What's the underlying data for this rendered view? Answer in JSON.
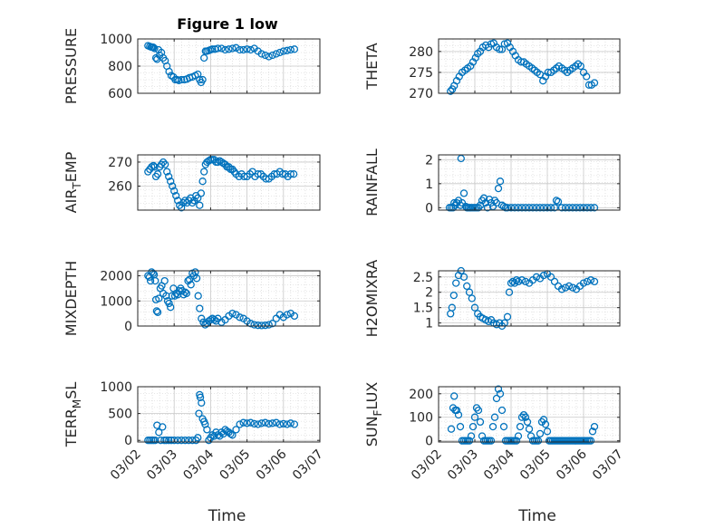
{
  "figure_title": "Figure 1 low",
  "chart_data": [
    {
      "type": "scatter",
      "ylabel": "PRESSURE",
      "ylim": [
        600,
        1000
      ],
      "yticks": [
        600,
        800,
        1000
      ],
      "xlim": [
        0,
        5
      ],
      "x": [
        0.28,
        0.33,
        0.37,
        0.4,
        0.43,
        0.46,
        0.5,
        0.53,
        0.57,
        0.6,
        0.65,
        0.7,
        0.75,
        0.8,
        0.86,
        0.92,
        0.98,
        1.03,
        1.08,
        1.13,
        1.2,
        1.28,
        1.35,
        1.42,
        1.5,
        1.58,
        1.65,
        1.7,
        1.74,
        1.78,
        1.82,
        1.86,
        1.9,
        1.95,
        2.0,
        2.05,
        2.12,
        2.2,
        2.3,
        2.4,
        2.5,
        2.6,
        2.7,
        2.8,
        2.9,
        3.0,
        3.1,
        3.2,
        3.3,
        3.4,
        3.5,
        3.6,
        3.7,
        3.8,
        3.9,
        4.0,
        4.1,
        4.2,
        4.3
      ],
      "y": [
        950,
        945,
        940,
        940,
        938,
        930,
        860,
        850,
        920,
        880,
        900,
        860,
        840,
        800,
        760,
        730,
        720,
        700,
        700,
        695,
        700,
        700,
        705,
        715,
        720,
        730,
        740,
        700,
        680,
        700,
        860,
        910,
        910,
        915,
        920,
        925,
        925,
        930,
        930,
        920,
        925,
        930,
        935,
        920,
        920,
        925,
        920,
        930,
        910,
        890,
        880,
        870,
        880,
        890,
        900,
        910,
        915,
        920,
        925
      ]
    },
    {
      "type": "scatter",
      "ylabel": "THETA",
      "ylim": [
        270,
        283
      ],
      "yticks": [
        270,
        275,
        280
      ],
      "xlim": [
        0,
        5
      ],
      "x": [
        0.33,
        0.38,
        0.43,
        0.5,
        0.57,
        0.65,
        0.73,
        0.8,
        0.88,
        0.95,
        1.02,
        1.08,
        1.15,
        1.22,
        1.3,
        1.38,
        1.45,
        1.52,
        1.6,
        1.68,
        1.75,
        1.82,
        1.9,
        1.97,
        2.05,
        2.12,
        2.2,
        2.28,
        2.35,
        2.42,
        2.5,
        2.58,
        2.65,
        2.72,
        2.8,
        2.88,
        2.95,
        3.02,
        3.1,
        3.18,
        3.25,
        3.32,
        3.4,
        3.48,
        3.55,
        3.62,
        3.7,
        3.78,
        3.85,
        3.92,
        4.0,
        4.08,
        4.15,
        4.22,
        4.3
      ],
      "y": [
        270.5,
        271,
        271.8,
        273,
        274,
        275,
        275.5,
        276,
        276.5,
        277.5,
        278.5,
        279.5,
        280,
        281,
        281.5,
        281,
        281.8,
        282,
        281,
        280.5,
        280.5,
        281.8,
        282,
        281,
        280,
        279,
        278,
        277.5,
        277.5,
        277,
        276.5,
        276,
        275.5,
        275,
        274.5,
        273,
        274,
        275,
        275,
        275.5,
        276,
        276.5,
        276,
        275.5,
        275,
        275.5,
        276,
        276.5,
        277,
        276.5,
        275,
        274,
        272,
        272,
        272.5
      ]
    },
    {
      "type": "scatter",
      "ylabel": "AIR",
      "ylabel_sub": "T",
      "ylabel_rest": "EMP",
      "ylim": [
        250,
        273
      ],
      "yticks": [
        260,
        270
      ],
      "xlim": [
        0,
        5
      ],
      "x": [
        0.28,
        0.33,
        0.38,
        0.43,
        0.46,
        0.5,
        0.55,
        0.6,
        0.65,
        0.7,
        0.75,
        0.8,
        0.85,
        0.9,
        0.95,
        1.0,
        1.05,
        1.1,
        1.15,
        1.2,
        1.25,
        1.3,
        1.35,
        1.4,
        1.45,
        1.5,
        1.55,
        1.6,
        1.65,
        1.7,
        1.74,
        1.78,
        1.82,
        1.86,
        1.9,
        1.95,
        2.0,
        2.05,
        2.1,
        2.15,
        2.2,
        2.25,
        2.3,
        2.35,
        2.4,
        2.45,
        2.5,
        2.55,
        2.6,
        2.65,
        2.7,
        2.78,
        2.85,
        2.92,
        3.0,
        3.08,
        3.15,
        3.22,
        3.3,
        3.38,
        3.45,
        3.52,
        3.6,
        3.68,
        3.75,
        3.82,
        3.9,
        3.98,
        4.05,
        4.12,
        4.2,
        4.28
      ],
      "y": [
        266,
        267,
        268,
        268.5,
        268,
        264,
        265,
        268,
        269,
        270,
        269,
        266,
        264,
        262,
        260,
        258,
        256,
        254,
        252,
        251,
        253,
        254,
        253,
        254,
        255,
        253,
        254,
        256,
        255,
        252,
        257,
        262,
        266,
        269,
        270,
        270.5,
        271,
        271,
        271,
        270,
        270,
        270.5,
        270,
        269.5,
        269,
        268,
        268,
        267,
        267,
        266,
        265,
        264,
        265,
        264,
        264,
        265,
        266,
        264,
        265,
        265,
        264,
        263,
        263,
        264,
        265,
        265,
        266,
        265,
        265,
        264,
        265,
        265
      ]
    },
    {
      "type": "scatter",
      "ylabel": "RAINFALL",
      "ylim": [
        -0.1,
        2.2
      ],
      "yticks": [
        0,
        1,
        2
      ],
      "xlim": [
        0,
        5
      ],
      "x": [
        0.3,
        0.35,
        0.4,
        0.43,
        0.46,
        0.5,
        0.55,
        0.6,
        0.62,
        0.65,
        0.7,
        0.75,
        0.78,
        0.82,
        0.86,
        0.9,
        0.95,
        1.0,
        1.05,
        1.1,
        1.15,
        1.2,
        1.25,
        1.3,
        1.35,
        1.4,
        1.45,
        1.5,
        1.55,
        1.6,
        1.65,
        1.7,
        1.75,
        1.8,
        1.85,
        1.9,
        2.0,
        2.1,
        2.2,
        2.3,
        2.4,
        2.5,
        2.6,
        2.7,
        2.8,
        2.9,
        3.0,
        3.1,
        3.2,
        3.25,
        3.3,
        3.4,
        3.5,
        3.6,
        3.7,
        3.8,
        3.9,
        4.0,
        4.1,
        4.2,
        4.3
      ],
      "y": [
        0,
        0,
        0,
        0.2,
        0.1,
        0.2,
        0.3,
        0.1,
        2.05,
        0.2,
        0.6,
        0.05,
        0,
        0,
        0,
        0,
        0,
        0,
        0,
        0,
        0.1,
        0.3,
        0.4,
        0.2,
        0,
        0.35,
        0.2,
        0.05,
        0.3,
        0.2,
        0.8,
        1.1,
        0.1,
        0.05,
        0,
        0,
        0,
        0,
        0,
        0,
        0,
        0,
        0,
        0,
        0,
        0,
        0,
        0,
        0,
        0.3,
        0.25,
        0,
        0,
        0,
        0,
        0,
        0,
        0,
        0,
        0,
        0
      ]
    },
    {
      "type": "scatter",
      "ylabel": "MIXDEPTH",
      "ylim": [
        0,
        2200
      ],
      "yticks": [
        0,
        1000,
        2000
      ],
      "xlim": [
        0,
        5
      ],
      "x": [
        0.28,
        0.32,
        0.35,
        0.38,
        0.42,
        0.45,
        0.48,
        0.5,
        0.52,
        0.55,
        0.58,
        0.62,
        0.66,
        0.7,
        0.74,
        0.78,
        0.82,
        0.86,
        0.9,
        0.94,
        0.98,
        1.02,
        1.06,
        1.1,
        1.14,
        1.18,
        1.22,
        1.26,
        1.3,
        1.34,
        1.38,
        1.42,
        1.46,
        1.5,
        1.54,
        1.58,
        1.62,
        1.66,
        1.7,
        1.75,
        1.8,
        1.85,
        1.9,
        1.95,
        2.0,
        2.05,
        2.1,
        2.15,
        2.2,
        2.3,
        2.4,
        2.5,
        2.6,
        2.7,
        2.8,
        2.9,
        3.0,
        3.1,
        3.2,
        3.3,
        3.4,
        3.5,
        3.6,
        3.7,
        3.8,
        3.9,
        4.0,
        4.1,
        4.2,
        4.3
      ],
      "y": [
        2000,
        1950,
        1800,
        2150,
        2100,
        2050,
        1800,
        1050,
        600,
        550,
        1100,
        1500,
        1600,
        1300,
        1800,
        1200,
        1000,
        900,
        750,
        1200,
        1500,
        1200,
        1300,
        1250,
        1400,
        1500,
        1400,
        1250,
        1350,
        1300,
        1800,
        1850,
        1650,
        2100,
        2000,
        2150,
        1900,
        1200,
        700,
        300,
        150,
        50,
        100,
        200,
        250,
        300,
        250,
        200,
        300,
        150,
        250,
        400,
        500,
        450,
        350,
        300,
        200,
        100,
        50,
        30,
        20,
        30,
        50,
        100,
        300,
        450,
        350,
        450,
        500,
        400
      ]
    },
    {
      "type": "scatter",
      "ylabel": "H2OMIXRA",
      "ylim": [
        0.9,
        2.7
      ],
      "yticks": [
        1,
        1.5,
        2,
        2.5
      ],
      "xlim": [
        0,
        5
      ],
      "x": [
        0.33,
        0.37,
        0.42,
        0.48,
        0.55,
        0.62,
        0.7,
        0.78,
        0.85,
        0.92,
        1.0,
        1.08,
        1.15,
        1.22,
        1.3,
        1.38,
        1.45,
        1.52,
        1.6,
        1.68,
        1.75,
        1.82,
        1.9,
        1.95,
        2.0,
        2.05,
        2.1,
        2.15,
        2.2,
        2.3,
        2.4,
        2.5,
        2.6,
        2.7,
        2.8,
        2.9,
        3.0,
        3.1,
        3.2,
        3.3,
        3.4,
        3.5,
        3.6,
        3.7,
        3.8,
        3.9,
        4.0,
        4.1,
        4.2,
        4.3
      ],
      "y": [
        1.3,
        1.5,
        1.9,
        2.3,
        2.55,
        2.7,
        2.5,
        2.2,
        2.0,
        1.8,
        1.5,
        1.3,
        1.2,
        1.15,
        1.1,
        1.05,
        1.1,
        1.0,
        0.95,
        1.0,
        0.9,
        1.0,
        1.2,
        2.0,
        2.3,
        2.35,
        2.3,
        2.4,
        2.35,
        2.4,
        2.35,
        2.3,
        2.4,
        2.5,
        2.45,
        2.55,
        2.6,
        2.5,
        2.35,
        2.2,
        2.1,
        2.15,
        2.2,
        2.15,
        2.1,
        2.2,
        2.3,
        2.35,
        2.4,
        2.35
      ]
    },
    {
      "type": "scatter",
      "ylabel": "TERR",
      "ylabel_sub": "M",
      "ylabel_rest": "SL",
      "ylim": [
        -30,
        1000
      ],
      "yticks": [
        0,
        500,
        1000
      ],
      "xlim": [
        0,
        5
      ],
      "x": [
        0.28,
        0.33,
        0.38,
        0.43,
        0.48,
        0.53,
        0.58,
        0.63,
        0.68,
        0.73,
        0.78,
        0.85,
        0.92,
        1.0,
        1.1,
        1.2,
        1.3,
        1.4,
        1.5,
        1.6,
        1.65,
        1.68,
        1.7,
        1.72,
        1.75,
        1.78,
        1.82,
        1.85,
        1.9,
        1.95,
        2.0,
        2.05,
        2.1,
        2.15,
        2.2,
        2.25,
        2.3,
        2.35,
        2.4,
        2.45,
        2.5,
        2.55,
        2.6,
        2.7,
        2.8,
        2.9,
        3.0,
        3.1,
        3.2,
        3.3,
        3.4,
        3.5,
        3.6,
        3.7,
        3.8,
        3.9,
        4.0,
        4.1,
        4.2,
        4.3
      ],
      "y": [
        0,
        0,
        0,
        0,
        0,
        280,
        150,
        0,
        250,
        0,
        0,
        0,
        0,
        0,
        0,
        0,
        0,
        0,
        0,
        0,
        50,
        500,
        850,
        800,
        700,
        400,
        350,
        300,
        200,
        0,
        50,
        100,
        80,
        150,
        100,
        80,
        150,
        120,
        200,
        170,
        150,
        120,
        100,
        200,
        300,
        330,
        320,
        330,
        310,
        300,
        320,
        330,
        310,
        320,
        330,
        300,
        310,
        300,
        320,
        300
      ]
    },
    {
      "type": "scatter",
      "ylabel": "SUN",
      "ylabel_sub": "F",
      "ylabel_rest": "LUX",
      "ylim": [
        -5,
        230
      ],
      "yticks": [
        0,
        100,
        200
      ],
      "xlim": [
        0,
        5
      ],
      "x": [
        0.35,
        0.4,
        0.43,
        0.46,
        0.5,
        0.55,
        0.6,
        0.65,
        0.7,
        0.75,
        0.8,
        0.85,
        0.9,
        0.95,
        1.0,
        1.05,
        1.1,
        1.15,
        1.2,
        1.25,
        1.3,
        1.35,
        1.4,
        1.45,
        1.5,
        1.55,
        1.6,
        1.65,
        1.7,
        1.75,
        1.8,
        1.85,
        1.9,
        1.95,
        2.0,
        2.05,
        2.1,
        2.15,
        2.2,
        2.25,
        2.3,
        2.35,
        2.4,
        2.45,
        2.5,
        2.55,
        2.6,
        2.65,
        2.7,
        2.75,
        2.8,
        2.85,
        2.9,
        2.95,
        3.0,
        3.05,
        3.1,
        3.15,
        3.2,
        3.25,
        3.3,
        3.35,
        3.4,
        3.45,
        3.5,
        3.55,
        3.6,
        3.65,
        3.7,
        3.75,
        3.8,
        3.85,
        3.9,
        3.95,
        4.0,
        4.05,
        4.1,
        4.15,
        4.2,
        4.25,
        4.3
      ],
      "y": [
        50,
        140,
        190,
        130,
        130,
        110,
        60,
        0,
        0,
        0,
        0,
        0,
        20,
        60,
        100,
        140,
        130,
        80,
        20,
        0,
        0,
        0,
        0,
        0,
        60,
        100,
        180,
        220,
        200,
        130,
        60,
        0,
        0,
        0,
        0,
        0,
        0,
        0,
        20,
        60,
        100,
        110,
        100,
        80,
        50,
        20,
        0,
        0,
        0,
        0,
        30,
        80,
        90,
        70,
        40,
        0,
        0,
        0,
        0,
        0,
        0,
        0,
        0,
        0,
        0,
        0,
        0,
        0,
        0,
        0,
        0,
        0,
        0,
        0,
        0,
        0,
        0,
        0,
        0,
        40,
        60
      ]
    }
  ],
  "xticklabels": [
    "03/02",
    "03/03",
    "03/04",
    "03/05",
    "03/06",
    "03/07"
  ],
  "xlabel": "Time"
}
